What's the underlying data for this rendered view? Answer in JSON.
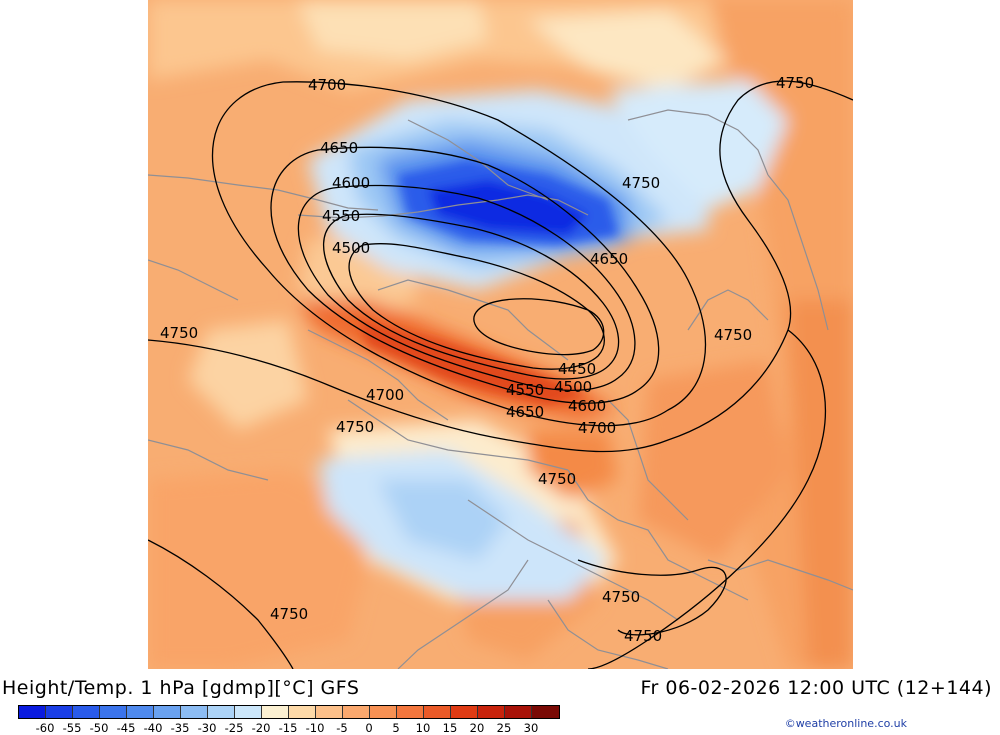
{
  "header": {
    "title_left": "Height/Temp. 1 hPa [gdmp][°C] GFS",
    "title_right": "Fr 06-02-2026 12:00 UTC (12+144)"
  },
  "colorbar": {
    "labels": [
      "-60",
      "-55",
      "-50",
      "-45",
      "-40",
      "-35",
      "-30",
      "-25",
      "-20",
      "-15",
      "-10",
      "-5",
      "0",
      "5",
      "10",
      "15",
      "20",
      "25",
      "30"
    ],
    "colors": [
      "#0a1be0",
      "#1a3ee6",
      "#2a5bea",
      "#3b74ec",
      "#4f8aee",
      "#6aa2f0",
      "#8cbcf3",
      "#acd3f7",
      "#cbe6fa",
      "#fbf0d2",
      "#fdd9a8",
      "#fcc08a",
      "#faa86e",
      "#f79154",
      "#f3763d",
      "#ea5a28",
      "#df3b14",
      "#c8230c",
      "#a81208",
      "#7a0a05"
    ]
  },
  "credit": "©weatheronline.co.uk",
  "map": {
    "contour_labels": [
      "4700",
      "4750",
      "4650",
      "4600",
      "4550",
      "4500",
      "4750",
      "4650",
      "4750",
      "4750",
      "4700",
      "4450",
      "4550",
      "4500",
      "4600",
      "4650",
      "4700",
      "4750",
      "4750",
      "4750",
      "4750",
      "4750"
    ]
  }
}
